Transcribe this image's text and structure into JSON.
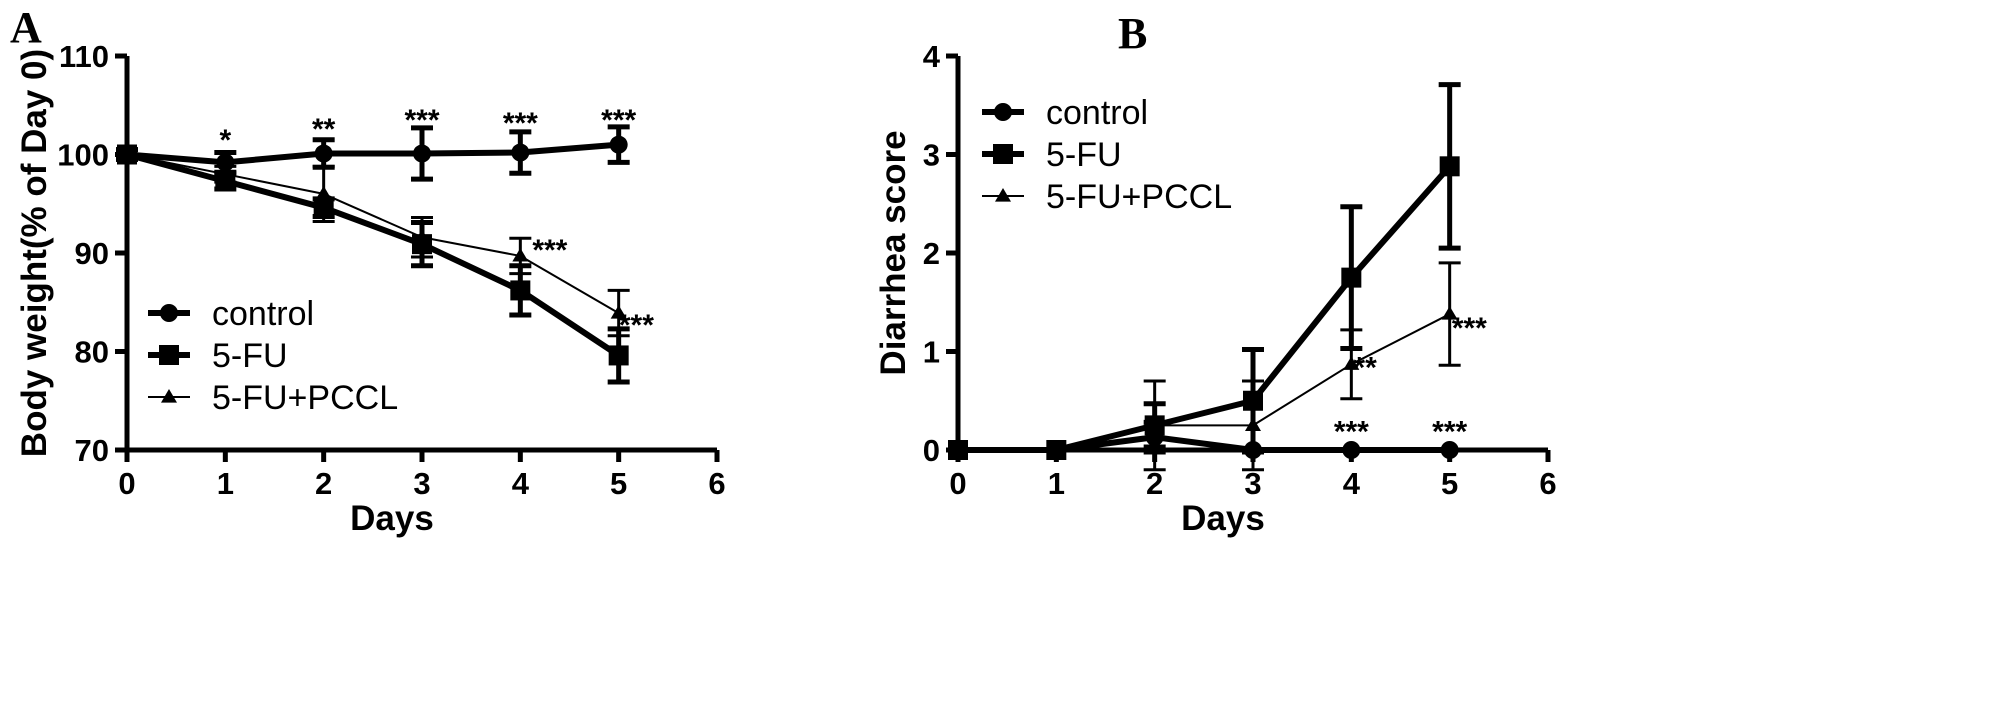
{
  "chart_data": [
    {
      "panel": "A",
      "type": "line",
      "xlabel": "Days",
      "ylabel": "Body weight(% of Day 0)",
      "xlim": [
        0,
        6
      ],
      "ylim": [
        70,
        110
      ],
      "xticks": [
        "0",
        "1",
        "2",
        "3",
        "4",
        "5",
        "6"
      ],
      "yticks": [
        "70",
        "80",
        "90",
        "100",
        "110"
      ],
      "legend_position": "lower-left",
      "series": [
        {
          "name": "control",
          "marker": "circle",
          "linewidth": "thick",
          "x": [
            0,
            1,
            2,
            3,
            4,
            5
          ],
          "y": [
            100,
            99.2,
            100.1,
            100.1,
            100.2,
            101.0
          ],
          "err": [
            0.5,
            1.0,
            1.4,
            2.6,
            2.1,
            1.8
          ]
        },
        {
          "name": "5-FU",
          "marker": "square",
          "linewidth": "thick",
          "x": [
            0,
            1,
            2,
            3,
            4,
            5
          ],
          "y": [
            100,
            97.3,
            94.6,
            90.9,
            86.2,
            79.6
          ],
          "err": [
            0.5,
            0.8,
            0.9,
            2.2,
            2.5,
            2.7
          ]
        },
        {
          "name": "5-FU+PCCL",
          "marker": "triangle",
          "linewidth": "thin",
          "x": [
            0,
            1,
            2,
            3,
            4,
            5
          ],
          "y": [
            100,
            98.0,
            96.0,
            91.6,
            89.7,
            83.9
          ],
          "err": [
            0.5,
            0.8,
            2.8,
            2.0,
            1.8,
            2.3
          ]
        }
      ],
      "annotations": [
        {
          "text": "*",
          "x": 1,
          "y": 101.7
        },
        {
          "text": "**",
          "x": 2,
          "y": 102.8
        },
        {
          "text": "***",
          "x": 3,
          "y": 103.7
        },
        {
          "text": "***",
          "x": 4,
          "y": 103.4
        },
        {
          "text": "***",
          "x": 5,
          "y": 103.7
        },
        {
          "text": "***",
          "x": 4.3,
          "y": 90.5
        },
        {
          "text": "***",
          "x": 5.18,
          "y": 82.9
        }
      ]
    },
    {
      "panel": "B",
      "type": "line",
      "xlabel": "Days",
      "ylabel": "Diarrhea score",
      "xlim": [
        0,
        6
      ],
      "ylim": [
        0,
        4
      ],
      "xticks": [
        "0",
        "1",
        "2",
        "3",
        "4",
        "5",
        "6"
      ],
      "yticks": [
        "0",
        "1",
        "2",
        "3",
        "4"
      ],
      "legend_position": "upper-left",
      "series": [
        {
          "name": "control",
          "marker": "circle",
          "linewidth": "thick",
          "x": [
            0,
            1,
            2,
            3,
            4,
            5
          ],
          "y": [
            0,
            0,
            0.13,
            0,
            0,
            0
          ],
          "err": [
            0,
            0,
            0.15,
            0,
            0,
            0
          ]
        },
        {
          "name": "5-FU",
          "marker": "square",
          "linewidth": "thick",
          "x": [
            0,
            1,
            2,
            3,
            4,
            5
          ],
          "y": [
            0,
            0,
            0.25,
            0.5,
            1.75,
            2.88
          ],
          "err": [
            0,
            0,
            0.22,
            0.52,
            0.72,
            0.83
          ]
        },
        {
          "name": "5-FU+PCCL",
          "marker": "triangle",
          "linewidth": "thin",
          "x": [
            0,
            1,
            2,
            3,
            4,
            5
          ],
          "y": [
            0,
            0,
            0.25,
            0.25,
            0.87,
            1.38
          ],
          "err": [
            0,
            0,
            0.45,
            0.45,
            0.35,
            0.52
          ]
        }
      ],
      "annotations": [
        {
          "text": "**",
          "x": 4.14,
          "y": 0.86
        },
        {
          "text": "***",
          "x": 5.2,
          "y": 1.26
        },
        {
          "text": "***",
          "x": 4,
          "y": 0.21
        },
        {
          "text": "***",
          "x": 5,
          "y": 0.21
        }
      ]
    }
  ]
}
